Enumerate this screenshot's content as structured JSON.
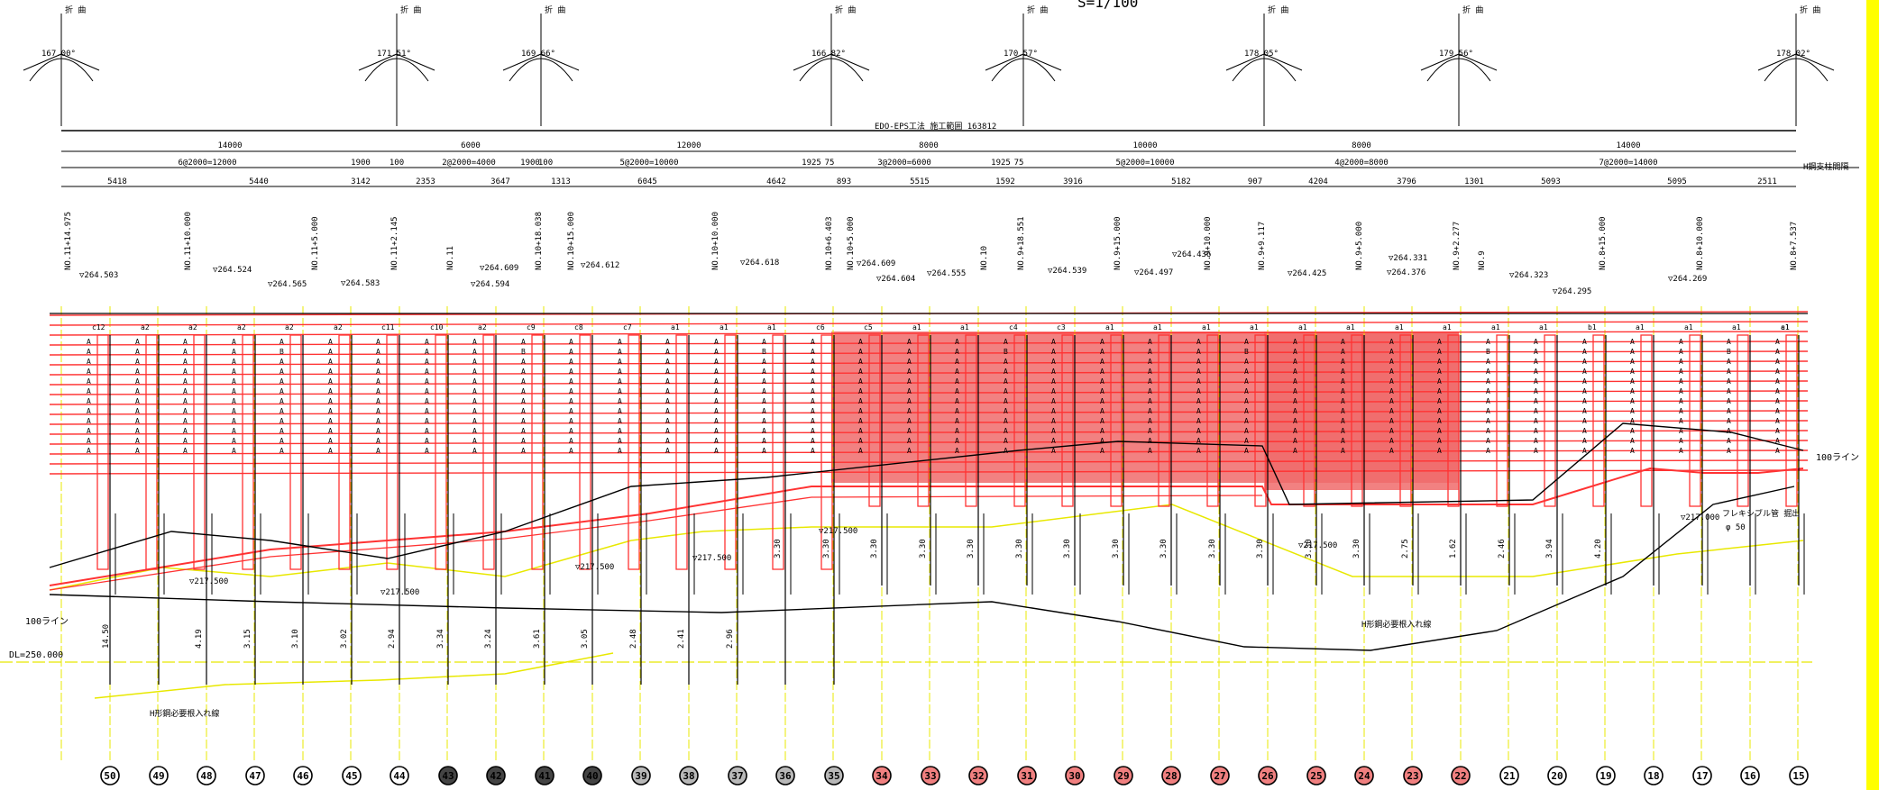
{
  "scale": "S=1/100",
  "construction_range": "EDO-EPS工法 施工範囲 163812",
  "angle_marks": [
    {
      "label": "折 曲",
      "angle": "167.00°"
    },
    {
      "label": "折 曲",
      "angle": "171.51°"
    },
    {
      "label": "折 曲",
      "angle": "169.66°"
    },
    {
      "label": "折 曲",
      "angle": "166.82°"
    },
    {
      "label": "折 曲",
      "angle": "170.57°"
    },
    {
      "label": "折 曲",
      "angle": "178.05°"
    },
    {
      "label": "折 曲",
      "angle": "179.56°"
    },
    {
      "label": "折 曲",
      "angle": "178.02°"
    }
  ],
  "dims_row1": [
    "14000",
    "6000",
    "12000",
    "8000",
    "10000",
    "8000",
    "14000"
  ],
  "dims_row2": [
    "6@2000=12000",
    "1900",
    "100",
    "2@2000=4000",
    "1900",
    "100",
    "5@2000=10000",
    "1925",
    "75",
    "3@2000=6000",
    "1925",
    "75",
    "5@2000=10000",
    "4@2000=8000",
    "7@2000=14000"
  ],
  "dims_row3": [
    "5418",
    "5440",
    "3142",
    "2353",
    "3647",
    "1313",
    "6045",
    "4642",
    "893",
    "5515",
    "1592",
    "3916",
    "5182",
    "907",
    "4204",
    "3796",
    "1301",
    "5093",
    "5095",
    "2511"
  ],
  "h_beam_label": "H鋼支柱間隔",
  "stations": [
    "NO.11+14.975",
    "NO.11+10.000",
    "NO.11+5.000",
    "NO.11+2.145",
    "NO.11",
    "NO.10+18.038",
    "NO.10+15.000",
    "NO.10+10.000",
    "NO.10+6.403",
    "NO.10+5.000",
    "NO.10",
    "NO.9+18.551",
    "NO.9+15.000",
    "NO.9+10.000",
    "NO.9+9.117",
    "NO.9+5.000",
    "NO.9+2.277",
    "NO.9",
    "NO.8+15.000",
    "NO.8+10.000",
    "NO.8+7.537"
  ],
  "elevations": [
    "▽264.503",
    "▽264.524",
    "▽264.565",
    "▽264.583",
    "▽264.609",
    "▽264.594",
    "▽264.612",
    "▽264.618",
    "▽264.609",
    "▽264.604",
    "▽264.555",
    "▽264.539",
    "▽264.497",
    "▽264.436",
    "▽264.425",
    "▽264.331",
    "▽264.376",
    "▽264.323",
    "▽264.295",
    "▽264.269"
  ],
  "bottom_elevations": [
    "▽217.500",
    "▽217.500",
    "▽217.500",
    "▽217.500",
    "▽217.500",
    "▽217.500",
    "▽217.000"
  ],
  "top_codes": [
    "c12",
    "a2",
    "a2",
    "a2",
    "a2",
    "a2",
    "c11",
    "c10",
    "a2",
    "c9",
    "c8",
    "c7",
    "a1",
    "a1",
    "a1",
    "c6",
    "c5",
    "a1",
    "a1",
    "c4",
    "c3",
    "a1",
    "a1",
    "a1",
    "a1",
    "a1",
    "a1",
    "a1",
    "a1",
    "a1",
    "a1",
    "b1",
    "a1",
    "a1",
    "a1",
    "a1",
    "c1"
  ],
  "column_letters": [
    "A",
    "B"
  ],
  "pile_lengths": [
    "14.50",
    "4.19",
    "3.15",
    "3.10",
    "3.02",
    "2.94",
    "3.34",
    "3.24",
    "3.61",
    "3.05",
    "2.48",
    "2.41",
    "2.96",
    "3.30",
    "3.30",
    "3.30",
    "3.30",
    "3.30",
    "3.30",
    "3.30",
    "3.30",
    "3.30",
    "3.30",
    "3.30",
    "3.30",
    "3.30",
    "2.75",
    "1.62",
    "2.46",
    "3.94",
    "4.20"
  ],
  "labels": {
    "line_100_left": "100ライン",
    "line_100_right": "100ライン",
    "datum": "DL=250.000",
    "h_steel_bottom": "H形鋼必要根入れ線",
    "h_steel_mid": "H形鋼必要根入れ線",
    "flexible_pipe": "フレキシブル管 掘出",
    "phi": "φ 50"
  },
  "pile_numbers": [
    "50",
    "49",
    "48",
    "47",
    "46",
    "45",
    "44",
    "43",
    "42",
    "41",
    "40",
    "39",
    "38",
    "37",
    "36",
    "35",
    "34",
    "33",
    "32",
    "31",
    "30",
    "29",
    "28",
    "27",
    "26",
    "25",
    "24",
    "23",
    "22",
    "21",
    "20",
    "19",
    "18",
    "17",
    "16",
    "15"
  ],
  "pile_styles": [
    "w",
    "w",
    "w",
    "w",
    "w",
    "w",
    "w",
    "d",
    "d",
    "d",
    "d",
    "g",
    "g",
    "g",
    "g",
    "g",
    "r",
    "r",
    "r",
    "r",
    "r",
    "r",
    "r",
    "r",
    "r",
    "r",
    "r",
    "r",
    "r",
    "w",
    "w",
    "w",
    "w",
    "w",
    "w",
    "w"
  ],
  "colors": {
    "red": "#ff3333",
    "fill_red": "#f06b6b",
    "yellow": "#e8e800",
    "dark": "#444444",
    "gray": "#b8b8b8",
    "pink": "#f08080"
  }
}
